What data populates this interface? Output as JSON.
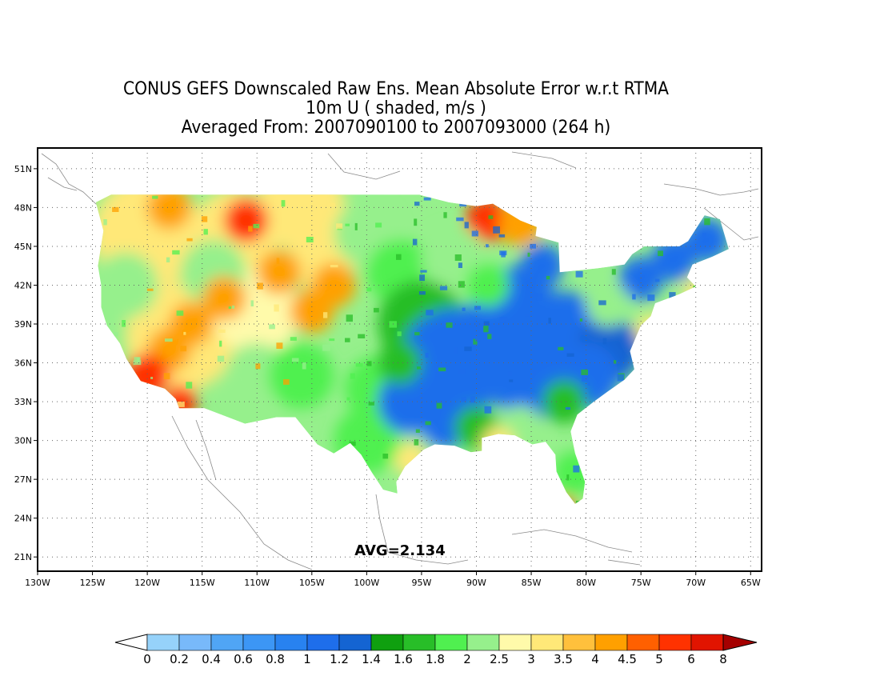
{
  "title": {
    "line1": "CONUS GEFS Downscaled Raw Ens. Mean Absolute Error w.r.t RTMA",
    "line2": "10m U ( shaded, m/s )",
    "line3": "Averaged From: 2007090100 to 2007093000 (264 h)"
  },
  "annotation": {
    "avg": "AVG=2.134"
  },
  "axes": {
    "x_ticks": [
      "130W",
      "125W",
      "120W",
      "115W",
      "110W",
      "105W",
      "100W",
      "95W",
      "90W",
      "85W",
      "80W",
      "75W",
      "70W",
      "65W"
    ],
    "y_ticks": [
      "51N",
      "48N",
      "45N",
      "42N",
      "39N",
      "36N",
      "33N",
      "30N",
      "27N",
      "24N",
      "21N"
    ],
    "x_range": [
      -130,
      -64
    ],
    "y_range": [
      19.9,
      52.6
    ]
  },
  "colorbar": {
    "levels": [
      "0",
      "0.2",
      "0.4",
      "0.6",
      "0.8",
      "1",
      "1.2",
      "1.4",
      "1.6",
      "1.8",
      "2",
      "2.5",
      "3",
      "3.5",
      "4",
      "4.5",
      "5",
      "6",
      "8"
    ],
    "colors": [
      "#96d2fa",
      "#78b9fa",
      "#50a5f5",
      "#3c96f5",
      "#2882f0",
      "#1e6eeb",
      "#1464d2",
      "#0fa00f",
      "#28be28",
      "#50f050",
      "#96f08c",
      "#fffaaa",
      "#ffe878",
      "#ffc03c",
      "#ffa000",
      "#ff6000",
      "#ff3200",
      "#e11400",
      "#a50000"
    ],
    "under_color": "#ffffff",
    "over_color": "#a50000"
  },
  "map_colors": {
    "low": "#1e6eeb",
    "low_dark": "#1464d2",
    "mid_green": "#28be28",
    "light_green": "#50f050",
    "pale_green": "#96f08c",
    "yellow": "#ffe878",
    "pale_yellow": "#fffaaa",
    "orange": "#ffa000",
    "red": "#ff3200"
  }
}
